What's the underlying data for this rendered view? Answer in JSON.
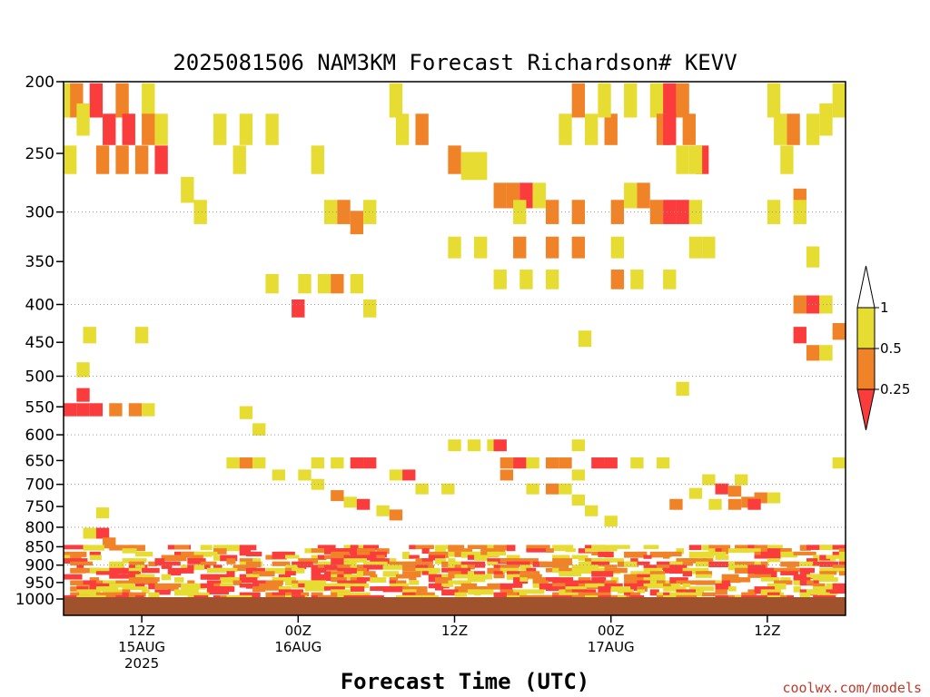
{
  "chart_data": {
    "type": "heatmap",
    "title": "2025081506 NAM3KM Forecast Richardson# KEVV",
    "xlabel": "Forecast Time (UTC)",
    "ylabel": "",
    "credit": "coolwx.com/models",
    "yaxis": {
      "scale": "log",
      "reversed": true,
      "range": [
        200,
        1000
      ],
      "ticks": [
        200,
        250,
        300,
        350,
        400,
        450,
        500,
        550,
        600,
        650,
        700,
        750,
        800,
        850,
        900,
        950,
        1000
      ],
      "gridlines": [
        300,
        400,
        500,
        600,
        700,
        800,
        900
      ]
    },
    "xaxis": {
      "range_hours": [
        0,
        60
      ],
      "ticks": [
        {
          "hour": 6,
          "lines": [
            "12Z",
            "15AUG",
            "2025"
          ]
        },
        {
          "hour": 18,
          "lines": [
            "00Z",
            "16AUG"
          ]
        },
        {
          "hour": 30,
          "lines": [
            "12Z"
          ]
        },
        {
          "hour": 42,
          "lines": [
            "00Z",
            "17AUG"
          ]
        },
        {
          "hour": 54,
          "lines": [
            "12Z"
          ]
        }
      ]
    },
    "colorbar": {
      "labels": [
        "1",
        "0.5",
        "0.25"
      ],
      "colors": {
        "lt_1": "#e6dc32",
        "lt_0_5": "#f08228",
        "lt_0_25": "#fa3c3c",
        "ground": "#a0522d"
      }
    },
    "cells": [
      {
        "t": 0.5,
        "p": 212,
        "v": 0.6
      },
      {
        "t": 1.0,
        "p": 212,
        "v": 0.4
      },
      {
        "t": 2.5,
        "p": 212,
        "v": 0.15
      },
      {
        "t": 4.5,
        "p": 212,
        "v": 0.4
      },
      {
        "t": 6.5,
        "p": 212,
        "v": 0.7
      },
      {
        "t": 3.5,
        "p": 232,
        "v": 0.15
      },
      {
        "t": 5.0,
        "p": 232,
        "v": 0.15
      },
      {
        "t": 6.5,
        "p": 232,
        "v": 0.4
      },
      {
        "t": 1.5,
        "p": 225,
        "v": 0.7
      },
      {
        "t": 7.5,
        "p": 232,
        "v": 0.7
      },
      {
        "t": 4.5,
        "p": 255,
        "v": 0.4
      },
      {
        "t": 3.0,
        "p": 255,
        "v": 0.4
      },
      {
        "t": 6.0,
        "p": 255,
        "v": 0.4
      },
      {
        "t": 7.5,
        "p": 255,
        "v": 0.15
      },
      {
        "t": 0.5,
        "p": 255,
        "v": 0.7
      },
      {
        "t": 9.5,
        "p": 280,
        "v": 0.7
      },
      {
        "t": 10.5,
        "p": 300,
        "v": 0.7
      },
      {
        "t": 14.0,
        "p": 232,
        "v": 0.7
      },
      {
        "t": 16.0,
        "p": 232,
        "v": 0.7
      },
      {
        "t": 12.0,
        "p": 232,
        "v": 0.7
      },
      {
        "t": 19.5,
        "p": 255,
        "v": 0.7
      },
      {
        "t": 13.5,
        "p": 255,
        "v": 0.7
      },
      {
        "t": 25.5,
        "p": 212,
        "v": 0.7
      },
      {
        "t": 27.5,
        "p": 232,
        "v": 0.4
      },
      {
        "t": 26.0,
        "p": 232,
        "v": 0.7
      },
      {
        "t": 20.5,
        "p": 300,
        "v": 0.7
      },
      {
        "t": 21.5,
        "p": 300,
        "v": 0.4
      },
      {
        "t": 22.5,
        "p": 310,
        "v": 0.4
      },
      {
        "t": 23.5,
        "p": 300,
        "v": 0.7
      },
      {
        "t": 18.5,
        "p": 375,
        "v": 0.7
      },
      {
        "t": 20.0,
        "p": 375,
        "v": 0.7
      },
      {
        "t": 21.0,
        "p": 375,
        "v": 0.4
      },
      {
        "t": 22.5,
        "p": 375,
        "v": 0.7
      },
      {
        "t": 16.0,
        "p": 375,
        "v": 0.7
      },
      {
        "t": 18.0,
        "p": 405,
        "v": 0.15
      },
      {
        "t": 23.5,
        "p": 405,
        "v": 0.7
      },
      {
        "t": 30.0,
        "p": 255,
        "v": 0.4
      },
      {
        "t": 31.0,
        "p": 260,
        "v": 0.7
      },
      {
        "t": 32.0,
        "p": 260,
        "v": 0.7
      },
      {
        "t": 30.0,
        "p": 335,
        "v": 0.7
      },
      {
        "t": 32.0,
        "p": 335,
        "v": 0.7
      },
      {
        "t": 33.5,
        "p": 285,
        "v": 0.4
      },
      {
        "t": 34.5,
        "p": 285,
        "v": 0.4
      },
      {
        "t": 35.5,
        "p": 285,
        "v": 0.15
      },
      {
        "t": 36.5,
        "p": 285,
        "v": 0.7
      },
      {
        "t": 35.0,
        "p": 300,
        "v": 0.7
      },
      {
        "t": 35.0,
        "p": 335,
        "v": 0.4
      },
      {
        "t": 37.5,
        "p": 300,
        "v": 0.4
      },
      {
        "t": 39.5,
        "p": 300,
        "v": 0.4
      },
      {
        "t": 37.5,
        "p": 335,
        "v": 0.4
      },
      {
        "t": 39.5,
        "p": 335,
        "v": 0.4
      },
      {
        "t": 33.5,
        "p": 370,
        "v": 0.7
      },
      {
        "t": 35.5,
        "p": 370,
        "v": 0.7
      },
      {
        "t": 37.5,
        "p": 370,
        "v": 0.7
      },
      {
        "t": 38.5,
        "p": 232,
        "v": 0.7
      },
      {
        "t": 40.5,
        "p": 232,
        "v": 0.7
      },
      {
        "t": 42.0,
        "p": 232,
        "v": 0.4
      },
      {
        "t": 39.5,
        "p": 212,
        "v": 0.4
      },
      {
        "t": 41.5,
        "p": 212,
        "v": 0.7
      },
      {
        "t": 43.5,
        "p": 212,
        "v": 0.7
      },
      {
        "t": 45.5,
        "p": 212,
        "v": 0.7
      },
      {
        "t": 46.5,
        "p": 212,
        "v": 0.15
      },
      {
        "t": 47.5,
        "p": 212,
        "v": 0.4
      },
      {
        "t": 42.5,
        "p": 300,
        "v": 0.4
      },
      {
        "t": 43.5,
        "p": 285,
        "v": 0.7
      },
      {
        "t": 44.5,
        "p": 285,
        "v": 0.4
      },
      {
        "t": 45.5,
        "p": 300,
        "v": 0.4
      },
      {
        "t": 46.5,
        "p": 300,
        "v": 0.15
      },
      {
        "t": 47.5,
        "p": 300,
        "v": 0.15
      },
      {
        "t": 48.5,
        "p": 300,
        "v": 0.7
      },
      {
        "t": 42.5,
        "p": 335,
        "v": 0.7
      },
      {
        "t": 42.5,
        "p": 370,
        "v": 0.4
      },
      {
        "t": 44.0,
        "p": 370,
        "v": 0.7
      },
      {
        "t": 46.5,
        "p": 370,
        "v": 0.7
      },
      {
        "t": 48.5,
        "p": 335,
        "v": 0.7
      },
      {
        "t": 49.5,
        "p": 335,
        "v": 0.7
      },
      {
        "t": 46.0,
        "p": 232,
        "v": 0.4
      },
      {
        "t": 46.5,
        "p": 232,
        "v": 0.15
      },
      {
        "t": 48.0,
        "p": 232,
        "v": 0.4
      },
      {
        "t": 49.0,
        "p": 255,
        "v": 0.15
      },
      {
        "t": 48.5,
        "p": 255,
        "v": 0.7
      },
      {
        "t": 47.5,
        "p": 255,
        "v": 0.7
      },
      {
        "t": 54.5,
        "p": 212,
        "v": 0.7
      },
      {
        "t": 56.0,
        "p": 232,
        "v": 0.4
      },
      {
        "t": 57.5,
        "p": 232,
        "v": 0.7
      },
      {
        "t": 58.5,
        "p": 225,
        "v": 0.7
      },
      {
        "t": 59.5,
        "p": 212,
        "v": 0.7
      },
      {
        "t": 55.0,
        "p": 232,
        "v": 0.7
      },
      {
        "t": 55.5,
        "p": 255,
        "v": 0.7
      },
      {
        "t": 56.5,
        "p": 290,
        "v": 0.4
      },
      {
        "t": 54.5,
        "p": 300,
        "v": 0.7
      },
      {
        "t": 56.5,
        "p": 300,
        "v": 0.7
      },
      {
        "t": 57.5,
        "p": 345,
        "v": 0.7
      },
      {
        "t": 56.5,
        "p": 400,
        "v": 0.4
      },
      {
        "t": 57.5,
        "p": 400,
        "v": 0.15
      },
      {
        "t": 58.5,
        "p": 400,
        "v": 0.7
      },
      {
        "t": 56.5,
        "p": 440,
        "v": 0.15
      },
      {
        "t": 57.5,
        "p": 465,
        "v": 0.4
      },
      {
        "t": 58.5,
        "p": 465,
        "v": 0.7
      },
      {
        "t": 59.5,
        "p": 435,
        "v": 0.4
      },
      {
        "t": 2.0,
        "p": 440,
        "v": 0.7
      },
      {
        "t": 6.0,
        "p": 440,
        "v": 0.7
      },
      {
        "t": 1.5,
        "p": 490,
        "v": 0.7
      },
      {
        "t": 1.5,
        "p": 530,
        "v": 0.15
      },
      {
        "t": 0.5,
        "p": 555,
        "v": 0.15
      },
      {
        "t": 1.5,
        "p": 555,
        "v": 0.15
      },
      {
        "t": 2.5,
        "p": 555,
        "v": 0.15
      },
      {
        "t": 4.0,
        "p": 555,
        "v": 0.4
      },
      {
        "t": 5.5,
        "p": 555,
        "v": 0.4
      },
      {
        "t": 6.5,
        "p": 555,
        "v": 0.7
      },
      {
        "t": 14.0,
        "p": 560,
        "v": 0.7
      },
      {
        "t": 15.0,
        "p": 590,
        "v": 0.7
      },
      {
        "t": 40.0,
        "p": 445,
        "v": 0.7
      },
      {
        "t": 47.5,
        "p": 520,
        "v": 0.7
      },
      {
        "t": 30.0,
        "p": 620,
        "v": 0.7
      },
      {
        "t": 31.5,
        "p": 620,
        "v": 0.7
      },
      {
        "t": 33.0,
        "p": 620,
        "v": 0.7
      },
      {
        "t": 33.5,
        "p": 620,
        "v": 0.15
      },
      {
        "t": 39.5,
        "p": 620,
        "v": 0.7
      },
      {
        "t": 13.0,
        "p": 655,
        "v": 0.7
      },
      {
        "t": 14.0,
        "p": 655,
        "v": 0.4
      },
      {
        "t": 15.0,
        "p": 655,
        "v": 0.7
      },
      {
        "t": 16.5,
        "p": 680,
        "v": 0.7
      },
      {
        "t": 18.5,
        "p": 680,
        "v": 0.7
      },
      {
        "t": 19.5,
        "p": 700,
        "v": 0.7
      },
      {
        "t": 19.5,
        "p": 655,
        "v": 0.7
      },
      {
        "t": 21.0,
        "p": 655,
        "v": 0.7
      },
      {
        "t": 22.5,
        "p": 655,
        "v": 0.15
      },
      {
        "t": 23.5,
        "p": 655,
        "v": 0.15
      },
      {
        "t": 25.5,
        "p": 680,
        "v": 0.7
      },
      {
        "t": 26.5,
        "p": 680,
        "v": 0.15
      },
      {
        "t": 34.0,
        "p": 655,
        "v": 0.4
      },
      {
        "t": 35.0,
        "p": 655,
        "v": 0.15
      },
      {
        "t": 36.0,
        "p": 655,
        "v": 0.7
      },
      {
        "t": 37.5,
        "p": 655,
        "v": 0.4
      },
      {
        "t": 38.5,
        "p": 655,
        "v": 0.4
      },
      {
        "t": 41.0,
        "p": 655,
        "v": 0.15
      },
      {
        "t": 42.0,
        "p": 655,
        "v": 0.15
      },
      {
        "t": 34.0,
        "p": 680,
        "v": 0.4
      },
      {
        "t": 39.5,
        "p": 680,
        "v": 0.7
      },
      {
        "t": 44.0,
        "p": 655,
        "v": 0.7
      },
      {
        "t": 46.0,
        "p": 655,
        "v": 0.7
      },
      {
        "t": 59.5,
        "p": 655,
        "v": 0.7
      },
      {
        "t": 21.0,
        "p": 725,
        "v": 0.4
      },
      {
        "t": 22.0,
        "p": 740,
        "v": 0.7
      },
      {
        "t": 23.0,
        "p": 745,
        "v": 0.15
      },
      {
        "t": 24.5,
        "p": 760,
        "v": 0.7
      },
      {
        "t": 25.5,
        "p": 770,
        "v": 0.4
      },
      {
        "t": 27.5,
        "p": 710,
        "v": 0.7
      },
      {
        "t": 29.5,
        "p": 710,
        "v": 0.7
      },
      {
        "t": 36.0,
        "p": 710,
        "v": 0.7
      },
      {
        "t": 37.5,
        "p": 710,
        "v": 0.4
      },
      {
        "t": 38.5,
        "p": 710,
        "v": 0.7
      },
      {
        "t": 39.5,
        "p": 735,
        "v": 0.7
      },
      {
        "t": 40.5,
        "p": 760,
        "v": 0.7
      },
      {
        "t": 42.0,
        "p": 785,
        "v": 0.7
      },
      {
        "t": 47.0,
        "p": 745,
        "v": 0.4
      },
      {
        "t": 49.5,
        "p": 690,
        "v": 0.7
      },
      {
        "t": 50.5,
        "p": 710,
        "v": 0.15
      },
      {
        "t": 51.5,
        "p": 715,
        "v": 0.4
      },
      {
        "t": 52.5,
        "p": 740,
        "v": 0.4
      },
      {
        "t": 53.5,
        "p": 730,
        "v": 0.4
      },
      {
        "t": 54.5,
        "p": 730,
        "v": 0.7
      },
      {
        "t": 50.0,
        "p": 745,
        "v": 0.7
      },
      {
        "t": 51.5,
        "p": 745,
        "v": 0.4
      },
      {
        "t": 53.0,
        "p": 745,
        "v": 0.15
      },
      {
        "t": 48.5,
        "p": 720,
        "v": 0.7
      },
      {
        "t": 52.0,
        "p": 690,
        "v": 0.7
      },
      {
        "t": 3.0,
        "p": 765,
        "v": 0.7
      },
      {
        "t": 2.0,
        "p": 815,
        "v": 0.7
      },
      {
        "t": 3.0,
        "p": 815,
        "v": 0.15
      },
      {
        "t": 3.5,
        "p": 840,
        "v": 0.4
      }
    ],
    "lowlevel_colors": [
      "#fa3c3c",
      "#e6dc32",
      "#f08228"
    ]
  }
}
